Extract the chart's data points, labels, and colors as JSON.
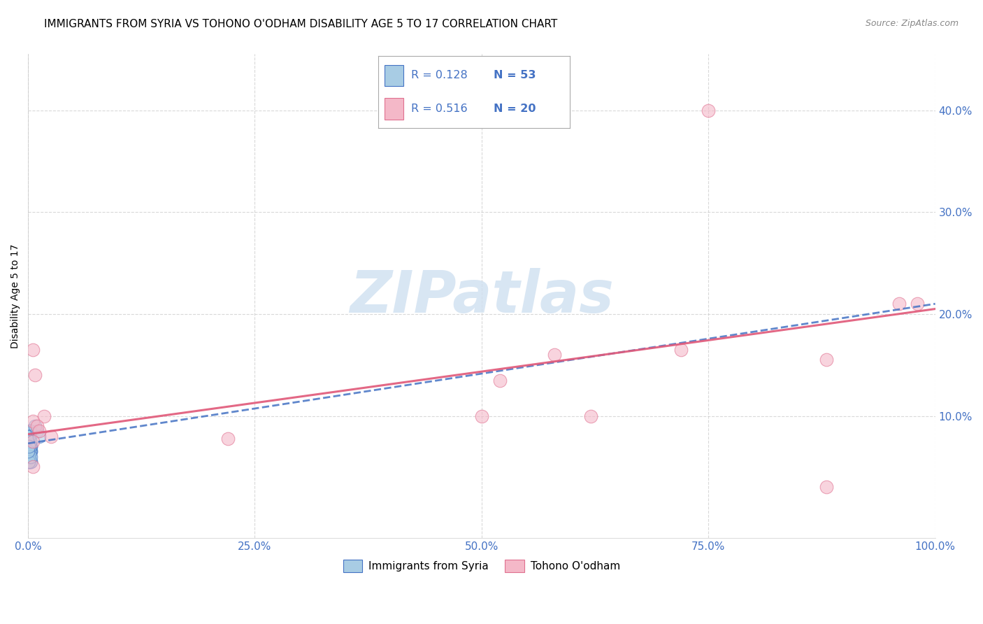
{
  "title": "IMMIGRANTS FROM SYRIA VS TOHONO O'ODHAM DISABILITY AGE 5 TO 17 CORRELATION CHART",
  "source": "Source: ZipAtlas.com",
  "ylabel": "Disability Age 5 to 17",
  "xlim": [
    0.0,
    1.0
  ],
  "ylim": [
    -0.02,
    0.455
  ],
  "xticks": [
    0.0,
    0.25,
    0.5,
    0.75,
    1.0
  ],
  "xtick_labels": [
    "0.0%",
    "25.0%",
    "50.0%",
    "75.0%",
    "100.0%"
  ],
  "yticks": [
    0.1,
    0.2,
    0.3,
    0.4
  ],
  "ytick_labels": [
    "10.0%",
    "20.0%",
    "30.0%",
    "40.0%"
  ],
  "blue_color": "#a8cce4",
  "pink_color": "#f4b8c8",
  "blue_edge_color": "#4472c4",
  "pink_edge_color": "#e07090",
  "blue_line_color": "#4472c4",
  "pink_line_color": "#e05878",
  "blue_scatter_x": [
    0.0,
    0.001,
    0.002,
    0.001,
    0.003,
    0.001,
    0.002,
    0.001,
    0.0,
    0.001,
    0.002,
    0.001,
    0.003,
    0.002,
    0.001,
    0.0,
    0.002,
    0.001,
    0.003,
    0.001,
    0.002,
    0.001,
    0.0,
    0.002,
    0.001,
    0.003,
    0.002,
    0.001,
    0.0,
    0.001,
    0.002,
    0.001,
    0.003,
    0.002,
    0.001,
    0.0,
    0.002,
    0.001,
    0.003,
    0.001,
    0.002,
    0.001,
    0.0,
    0.002,
    0.001,
    0.003,
    0.002,
    0.001,
    0.0,
    0.001,
    0.01,
    0.008,
    0.012
  ],
  "blue_scatter_y": [
    0.075,
    0.08,
    0.065,
    0.055,
    0.07,
    0.06,
    0.085,
    0.07,
    0.065,
    0.075,
    0.08,
    0.055,
    0.065,
    0.07,
    0.06,
    0.075,
    0.085,
    0.07,
    0.065,
    0.055,
    0.07,
    0.06,
    0.075,
    0.08,
    0.065,
    0.07,
    0.055,
    0.06,
    0.075,
    0.08,
    0.065,
    0.07,
    0.055,
    0.06,
    0.075,
    0.08,
    0.065,
    0.07,
    0.055,
    0.06,
    0.075,
    0.08,
    0.065,
    0.07,
    0.055,
    0.06,
    0.075,
    0.08,
    0.065,
    0.07,
    0.085,
    0.09,
    0.08
  ],
  "pink_scatter_x": [
    0.005,
    0.008,
    0.018,
    0.005,
    0.01,
    0.012,
    0.025,
    0.22,
    0.58,
    0.75,
    0.88,
    0.96,
    0.52,
    0.005,
    0.005,
    0.5,
    0.62,
    0.72,
    0.88,
    0.98
  ],
  "pink_scatter_y": [
    0.165,
    0.14,
    0.1,
    0.095,
    0.09,
    0.085,
    0.08,
    0.078,
    0.16,
    0.4,
    0.155,
    0.21,
    0.135,
    0.075,
    0.05,
    0.1,
    0.1,
    0.165,
    0.03,
    0.21
  ],
  "blue_trend_x": [
    0.0,
    1.0
  ],
  "blue_trend_y": [
    0.073,
    0.21
  ],
  "pink_trend_x": [
    0.0,
    1.0
  ],
  "pink_trend_y": [
    0.082,
    0.205
  ],
  "background_color": "#ffffff",
  "grid_color": "#d0d0d0",
  "title_fontsize": 11,
  "axis_label_fontsize": 10,
  "tick_fontsize": 11,
  "tick_color": "#4472c4",
  "watermark_color": "#cfe0f0",
  "legend_r1": "R = 0.128",
  "legend_n1": "N = 53",
  "legend_r2": "R = 0.516",
  "legend_n2": "N = 20",
  "legend_label1": "Immigrants from Syria",
  "legend_label2": "Tohono O'odham"
}
